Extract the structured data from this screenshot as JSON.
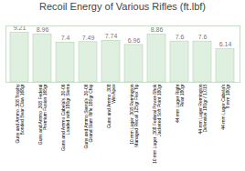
{
  "chart_data": {
    "type": "bar",
    "title": "Recoil Energy of Various Rifles (ft.lbf)",
    "categories": [
      "Guns and Ammo .308 Trophy\nBonded Bear Claw 168gr",
      "Guns and Ammo .308 Federal\nPremium Fusion 165gr",
      "Guns and Ammo Cabela's .30-06\nLoaded with 180gr Sierra",
      "Guns and Ammo Sierra's .30-06\nGrand Slam Rifle 180gr Chip",
      "Guns and Ammo .308\nWin Apex",
      "10 mm Luger .308 Remington\nManaged Recoil 125gr Flex Tip",
      "10 mm Luger .308 Federal Power-Shok\nJacketed Soft Point 180gr",
      "44 mm Luger Right\nRear 180gr",
      "44 mm Luger Remington\nDefensive 180gr / 1,015",
      "44 mm Luger Cabela's\n9 mm 180gr"
    ],
    "values": [
      9.21,
      8.96,
      7.4,
      7.49,
      7.74,
      6.96,
      8.86,
      7.6,
      7.6,
      6.14
    ],
    "color": "#e0f0e0",
    "ylim": [
      0,
      10.5
    ],
    "data_labels": true,
    "tick_labels": "x"
  }
}
